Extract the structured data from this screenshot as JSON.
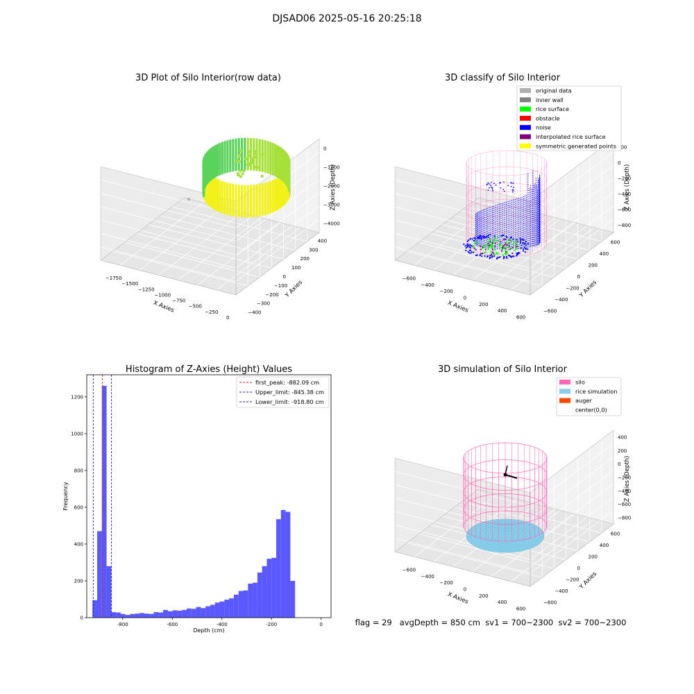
{
  "suptitle": "DJSAD06 2025-05-16 20:25:18",
  "footer_text": "flag = 29   avgDepth = 850 cm  sv1 = 700~2300  sv2 = 700~2300",
  "colors": {
    "background": "#ffffff",
    "pane": "#f2f2f2",
    "grid": "#d9d9d9",
    "hist_bar": "#5050ff",
    "first_peak": "#d62728",
    "limit": "#1f1fb4",
    "silo": "#ff69b4",
    "rice_simulation": "#87ceeb",
    "auger": "#ff4500",
    "original_data": "#b0b0b0",
    "inner_wall": "#808080",
    "rice_surface": "#00ff00",
    "obstacle": "#ff0000",
    "noise": "#0000ff",
    "interpolated_rice_surface": "#800080",
    "symmetric_generated_points": "#ffff00"
  },
  "chart_data": [
    {
      "type": "scatter",
      "projection": "3d",
      "title": "3D Plot of Silo Interior(row data)",
      "xlabel": "X Axies",
      "ylabel": "Y Axies",
      "zlabel": "Z Axies (Depth)",
      "xticks": [
        "−1750",
        "−1500",
        "−1250",
        "−1000",
        "−750",
        "−500",
        "−250",
        "0"
      ],
      "yticks": [
        "−400",
        "−300",
        "−200",
        "−100",
        "0",
        "100",
        "200",
        "300",
        "400"
      ],
      "zticks": [
        "0",
        "−1000",
        "−2000",
        "−3000",
        "−4000"
      ],
      "xlim": [
        -1800,
        100
      ],
      "ylim": [
        -400,
        400
      ],
      "zlim": [
        -4300,
        200
      ],
      "colormap": "viridis-yellow-green",
      "colormap_stops": [
        "#5bd35b",
        "#a6e13a",
        "#f2f21a"
      ]
    },
    {
      "type": "scatter",
      "projection": "3d",
      "title": "3D classify of Silo Interior",
      "xlabel": "X Axies",
      "ylabel": "Y Axies",
      "zlabel": "Z Axies (Depth)",
      "xticks": [
        "−600",
        "−400",
        "−200",
        "0",
        "200",
        "400",
        "600"
      ],
      "yticks": [
        "−600",
        "−400",
        "−200",
        "0",
        "200",
        "400",
        "600"
      ],
      "zticks": [
        "200",
        "0",
        "−200",
        "−400",
        "−600",
        "−800"
      ],
      "xlim": [
        -650,
        650
      ],
      "ylim": [
        -650,
        650
      ],
      "zlim": [
        -900,
        300
      ],
      "legend_position": "upper right",
      "legend": [
        {
          "label": "original data",
          "color": "#b0b0b0"
        },
        {
          "label": "inner wall",
          "color": "#808080"
        },
        {
          "label": "rice surface",
          "color": "#00ff00"
        },
        {
          "label": "obstacle",
          "color": "#ff0000"
        },
        {
          "label": "noise",
          "color": "#0000ff"
        },
        {
          "label": "interpolated rice surface",
          "color": "#800080"
        },
        {
          "label": "symmetric generated points",
          "color": "#ffff00"
        }
      ]
    },
    {
      "type": "histogram",
      "title": "Histogram of Z-Axies (Height) Values",
      "xlabel": "Depth (cm)",
      "ylabel": "Frequency",
      "xlim": [
        -945,
        40
      ],
      "ylim": [
        0,
        1320
      ],
      "xticks": [
        -800,
        -600,
        -400,
        -200,
        0
      ],
      "yticks": [
        0,
        200,
        400,
        600,
        800,
        1000,
        1200
      ],
      "bin_start": -922,
      "bin_width": 19,
      "counts": [
        95,
        470,
        1260,
        280,
        30,
        28,
        20,
        15,
        20,
        22,
        25,
        22,
        20,
        30,
        28,
        42,
        35,
        40,
        38,
        42,
        50,
        48,
        58,
        52,
        62,
        70,
        82,
        88,
        98,
        105,
        125,
        145,
        148,
        185,
        190,
        245,
        280,
        320,
        325,
        535,
        585,
        575,
        200
      ],
      "vlines": [
        {
          "x": -882.09,
          "style": "dashed",
          "color": "#d62728",
          "label": "first_peak: -882.09 cm"
        },
        {
          "x": -845.38,
          "style": "dashed",
          "color": "#1f1fb4",
          "label": "Upper_limit: -845.38 cm"
        },
        {
          "x": -918.8,
          "style": "dashed",
          "color": "#1f1fb4",
          "label": "Lower_limit: -918.80 cm"
        }
      ],
      "legend_position": "upper right"
    },
    {
      "type": "surface",
      "projection": "3d",
      "title": "3D simulation of Silo Interior",
      "xlabel": "X Axies",
      "ylabel": "Y Axies",
      "zlabel": "Z Axies (Depth)",
      "xticks": [
        "−600",
        "−400",
        "−200",
        "0",
        "200",
        "400",
        "600"
      ],
      "yticks": [
        "−600",
        "−400",
        "−200",
        "0",
        "200",
        "400",
        "600"
      ],
      "zticks": [
        "400",
        "200",
        "0",
        "−200",
        "−400",
        "−600",
        "−800"
      ],
      "xlim": [
        -650,
        650
      ],
      "ylim": [
        -650,
        650
      ],
      "zlim": [
        -900,
        450
      ],
      "legend_position": "upper right",
      "legend": [
        {
          "label": "silo",
          "color": "#ff69b4"
        },
        {
          "label": "rice simulation",
          "color": "#87ceeb"
        },
        {
          "label": "auger",
          "color": "#ff4500"
        },
        {
          "label": "center(0,0)",
          "color": ""
        }
      ]
    }
  ]
}
